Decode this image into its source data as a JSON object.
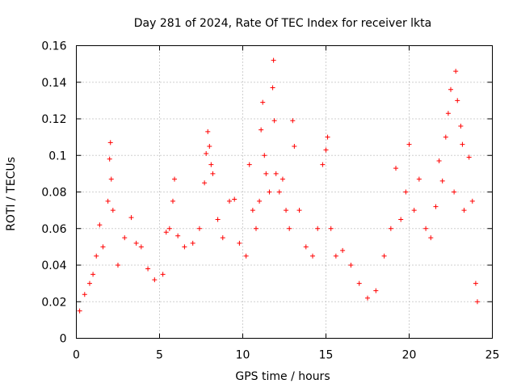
{
  "chart_data": {
    "type": "scatter",
    "title": "Day 281 of 2024, Rate Of TEC Index for receiver lkta",
    "xlabel": "GPS time / hours",
    "ylabel": "ROTI / TECUs",
    "xlim": [
      0,
      25
    ],
    "ylim": [
      0,
      0.16
    ],
    "xticks": [
      0,
      5,
      10,
      15,
      20,
      25
    ],
    "xtick_labels": [
      "0",
      "5",
      "10",
      "15",
      "20",
      "25"
    ],
    "yticks": [
      0,
      0.02,
      0.04,
      0.06,
      0.08,
      0.1,
      0.12,
      0.14,
      0.16
    ],
    "ytick_labels": [
      "0",
      "0.02",
      "0.04",
      "0.06",
      "0.08",
      "0.1",
      "0.12",
      "0.14",
      "0.16"
    ],
    "grid": true,
    "marker": "+",
    "marker_color": "#ff0000",
    "series": [
      {
        "name": "ROTI",
        "points": [
          [
            0.2,
            0.015
          ],
          [
            0.5,
            0.024
          ],
          [
            0.8,
            0.03
          ],
          [
            1.0,
            0.035
          ],
          [
            1.2,
            0.045
          ],
          [
            1.4,
            0.062
          ],
          [
            1.6,
            0.05
          ],
          [
            1.9,
            0.075
          ],
          [
            2.0,
            0.098
          ],
          [
            2.05,
            0.107
          ],
          [
            2.1,
            0.087
          ],
          [
            2.2,
            0.07
          ],
          [
            2.5,
            0.04
          ],
          [
            2.9,
            0.055
          ],
          [
            3.3,
            0.066
          ],
          [
            3.6,
            0.052
          ],
          [
            3.9,
            0.05
          ],
          [
            4.3,
            0.038
          ],
          [
            4.7,
            0.032
          ],
          [
            5.2,
            0.035
          ],
          [
            5.4,
            0.058
          ],
          [
            5.6,
            0.06
          ],
          [
            5.8,
            0.075
          ],
          [
            5.9,
            0.087
          ],
          [
            6.1,
            0.056
          ],
          [
            6.5,
            0.05
          ],
          [
            7.0,
            0.052
          ],
          [
            7.4,
            0.06
          ],
          [
            7.7,
            0.085
          ],
          [
            7.8,
            0.101
          ],
          [
            7.9,
            0.113
          ],
          [
            8.0,
            0.105
          ],
          [
            8.1,
            0.095
          ],
          [
            8.2,
            0.09
          ],
          [
            8.5,
            0.065
          ],
          [
            8.8,
            0.055
          ],
          [
            9.2,
            0.075
          ],
          [
            9.5,
            0.076
          ],
          [
            9.8,
            0.052
          ],
          [
            10.2,
            0.045
          ],
          [
            10.4,
            0.095
          ],
          [
            10.6,
            0.07
          ],
          [
            10.8,
            0.06
          ],
          [
            11.0,
            0.075
          ],
          [
            11.1,
            0.114
          ],
          [
            11.2,
            0.129
          ],
          [
            11.3,
            0.1
          ],
          [
            11.4,
            0.09
          ],
          [
            11.6,
            0.08
          ],
          [
            11.8,
            0.137
          ],
          [
            11.85,
            0.152
          ],
          [
            11.9,
            0.119
          ],
          [
            12.0,
            0.09
          ],
          [
            12.2,
            0.08
          ],
          [
            12.4,
            0.087
          ],
          [
            12.6,
            0.07
          ],
          [
            12.8,
            0.06
          ],
          [
            13.0,
            0.119
          ],
          [
            13.1,
            0.105
          ],
          [
            13.4,
            0.07
          ],
          [
            13.8,
            0.05
          ],
          [
            14.2,
            0.045
          ],
          [
            14.5,
            0.06
          ],
          [
            14.8,
            0.095
          ],
          [
            15.0,
            0.103
          ],
          [
            15.1,
            0.11
          ],
          [
            15.3,
            0.06
          ],
          [
            15.6,
            0.045
          ],
          [
            16.0,
            0.048
          ],
          [
            16.5,
            0.04
          ],
          [
            17.0,
            0.03
          ],
          [
            17.5,
            0.022
          ],
          [
            18.0,
            0.026
          ],
          [
            18.5,
            0.045
          ],
          [
            18.9,
            0.06
          ],
          [
            19.2,
            0.093
          ],
          [
            19.5,
            0.065
          ],
          [
            19.8,
            0.08
          ],
          [
            20.0,
            0.106
          ],
          [
            20.3,
            0.07
          ],
          [
            20.6,
            0.087
          ],
          [
            21.0,
            0.06
          ],
          [
            21.3,
            0.055
          ],
          [
            21.6,
            0.072
          ],
          [
            21.8,
            0.097
          ],
          [
            22.0,
            0.086
          ],
          [
            22.2,
            0.11
          ],
          [
            22.35,
            0.123
          ],
          [
            22.5,
            0.136
          ],
          [
            22.7,
            0.08
          ],
          [
            22.8,
            0.146
          ],
          [
            22.9,
            0.13
          ],
          [
            23.1,
            0.116
          ],
          [
            23.2,
            0.106
          ],
          [
            23.3,
            0.07
          ],
          [
            23.6,
            0.099
          ],
          [
            23.8,
            0.075
          ],
          [
            24.0,
            0.03
          ],
          [
            24.1,
            0.02
          ]
        ]
      }
    ]
  }
}
